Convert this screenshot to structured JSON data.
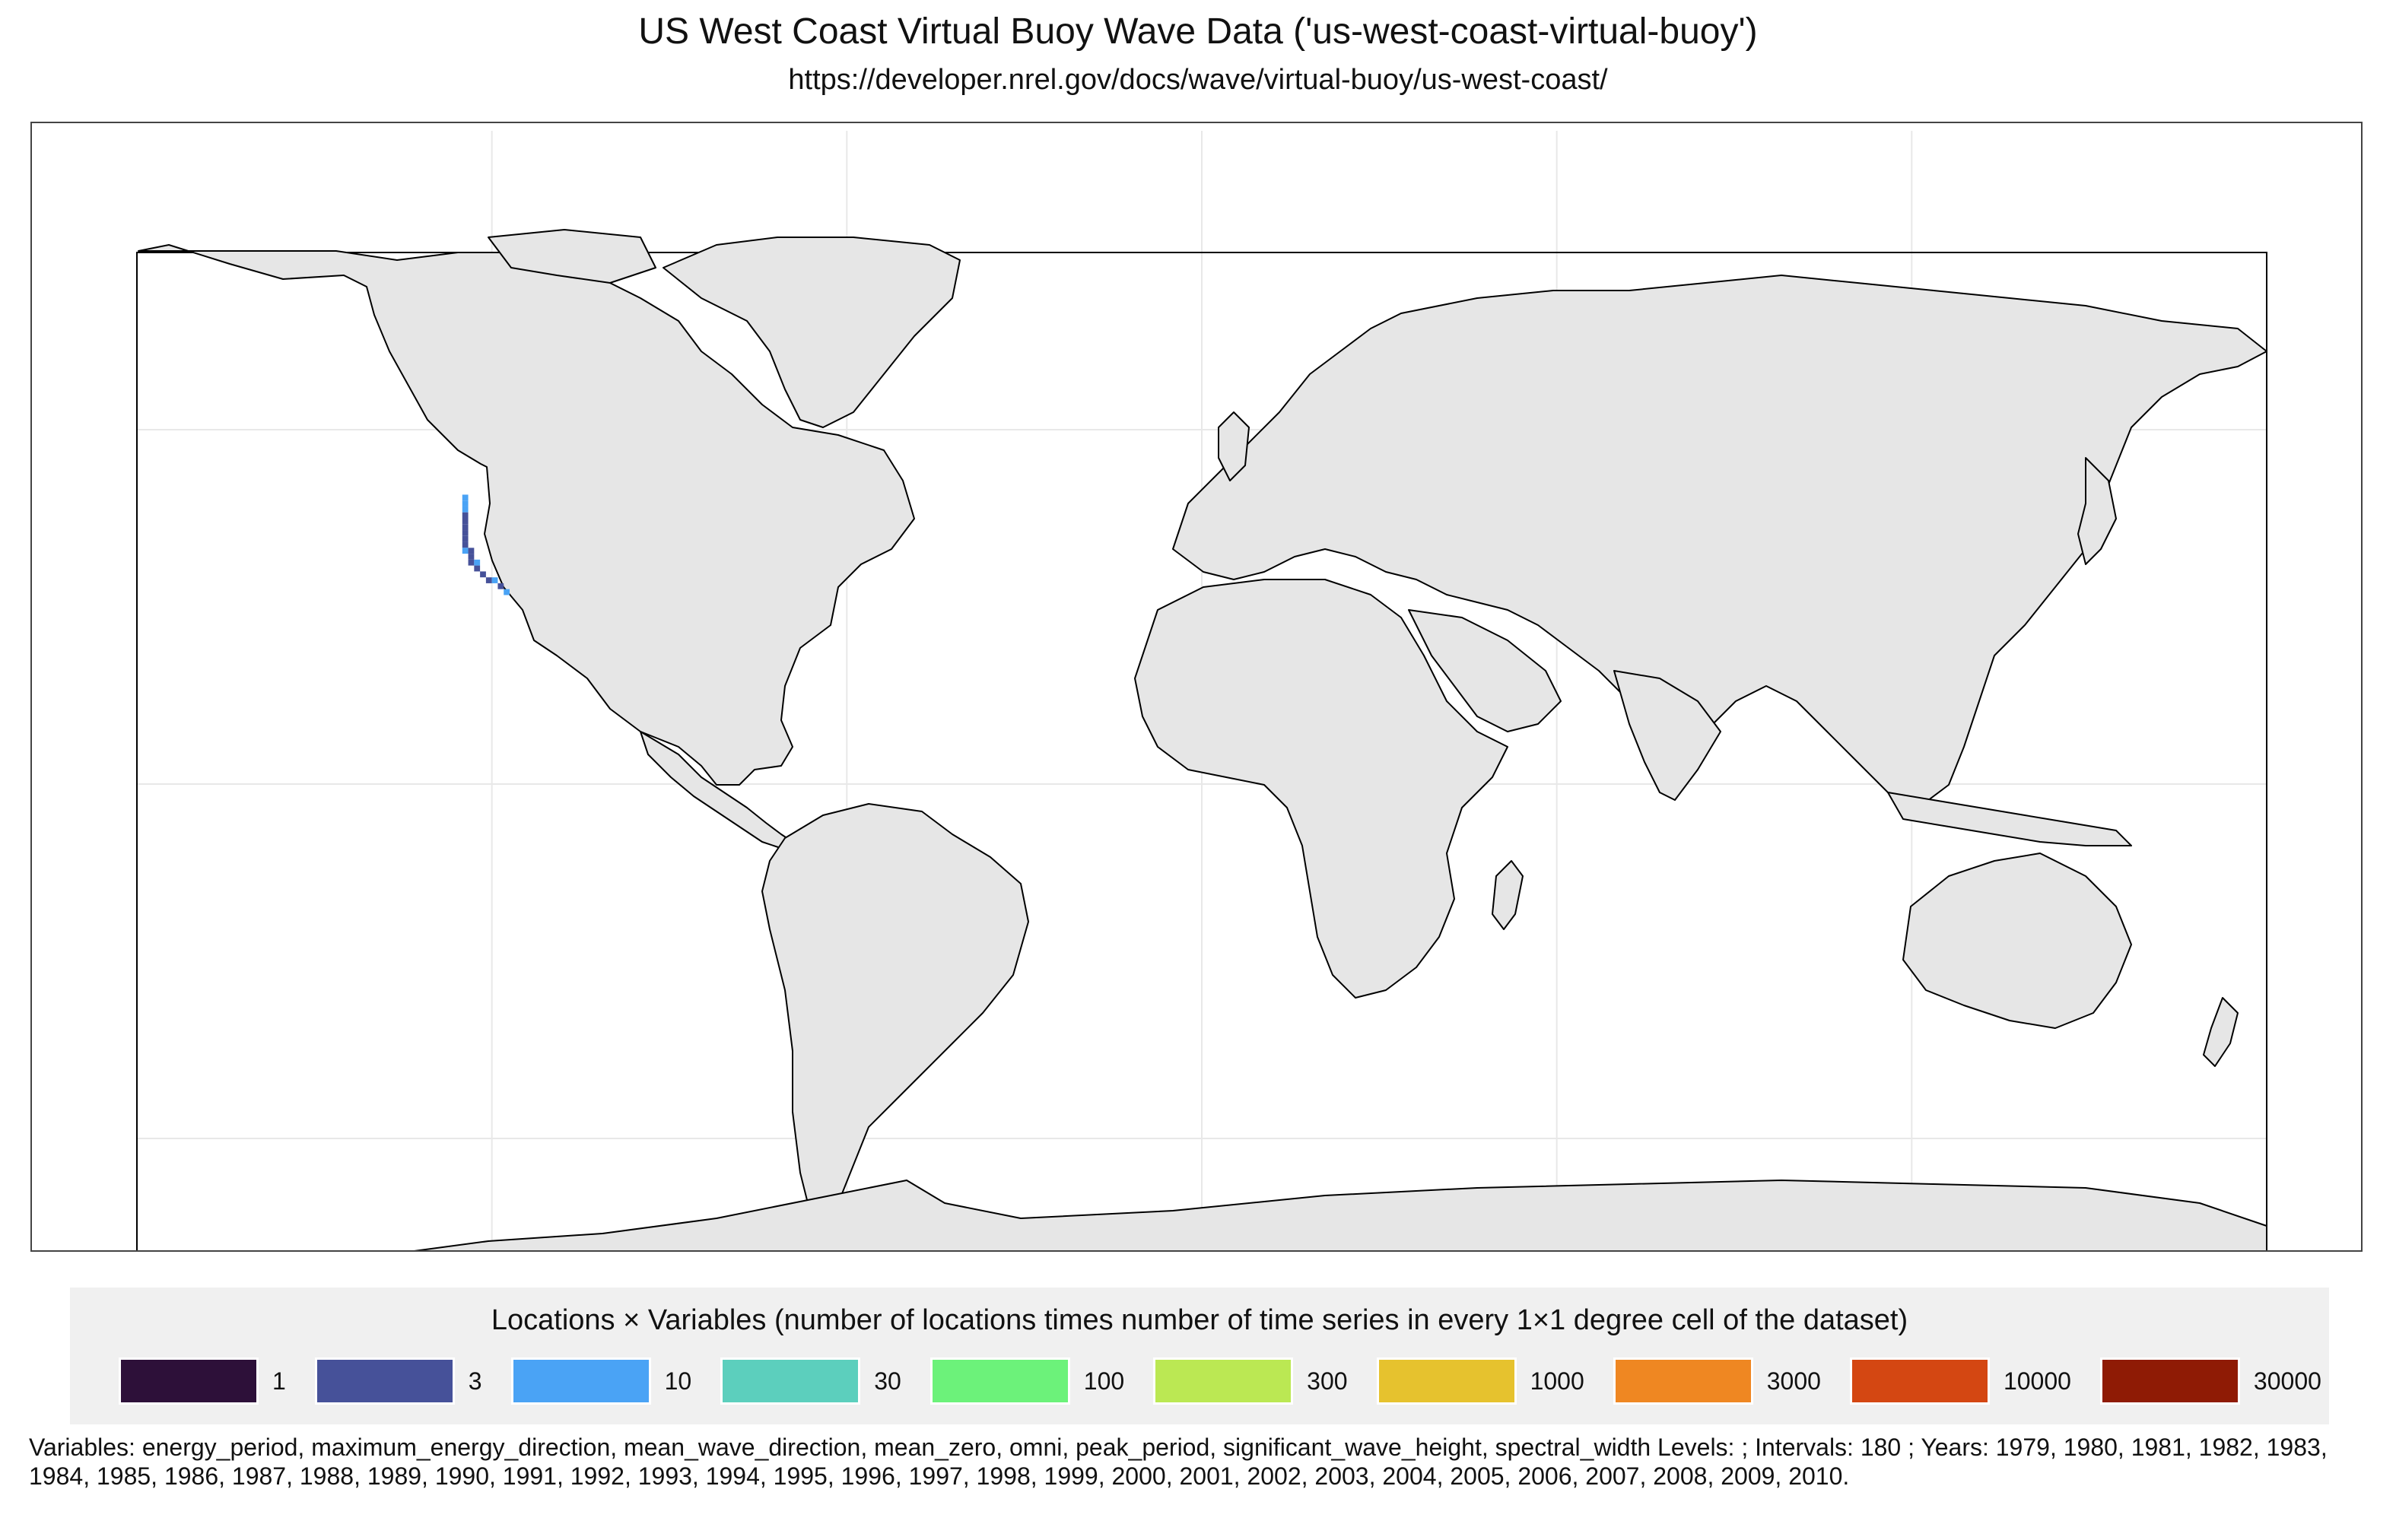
{
  "title": "US West Coast Virtual Buoy Wave Data ('us-west-coast-virtual-buoy')",
  "subtitle": "https://developer.nrel.gov/docs/wave/virtual-buoy/us-west-coast/",
  "colors": {
    "background": "#ffffff",
    "land_fill": "#e6e6e6",
    "land_cells": "#d9d9d9",
    "coastline": "#000000",
    "gridline": "#e8e8e8",
    "legend_panel": "#f0f0f0"
  },
  "legend": {
    "title": "Locations × Variables (number of locations times number of time series in every 1×1 degree cell of the dataset)",
    "items": [
      {
        "label": "1",
        "color": "#2d1039"
      },
      {
        "label": "3",
        "color": "#465199"
      },
      {
        "label": "10",
        "color": "#4aa3f5"
      },
      {
        "label": "30",
        "color": "#5ccfbd"
      },
      {
        "label": "100",
        "color": "#6cf27a"
      },
      {
        "label": "300",
        "color": "#bbe853"
      },
      {
        "label": "1000",
        "color": "#e6c22e"
      },
      {
        "label": "3000",
        "color": "#ef8722"
      },
      {
        "label": "10000",
        "color": "#d44712"
      },
      {
        "label": "30000",
        "color": "#8f1b05"
      }
    ]
  },
  "caption": "Variables: energy_period, maximum_energy_direction, mean_wave_direction, mean_zero, omni, peak_period, significant_wave_height, spectral_width Levels: ; Intervals: 180 ; Years: 1979, 1980, 1981, 1982, 1983, 1984, 1985, 1986, 1987, 1988, 1989, 1990, 1991, 1992, 1993, 1994, 1995, 1996, 1997, 1998, 1999, 2000, 2001, 2002, 2003, 2004, 2005, 2006, 2007, 2008, 2009, 2010.",
  "map": {
    "projection": "equirectangular",
    "lon_range": [
      -180,
      180
    ],
    "lat_range": [
      -90,
      90
    ],
    "data_cells": {
      "region": "US West Coast (California to Washington)",
      "cells": [
        {
          "lon": -124.5,
          "lat": 48.5,
          "level": 2
        },
        {
          "lon": -124.5,
          "lat": 47.5,
          "level": 2
        },
        {
          "lon": -124.5,
          "lat": 46.5,
          "level": 2
        },
        {
          "lon": -124.5,
          "lat": 45.5,
          "level": 1
        },
        {
          "lon": -124.5,
          "lat": 44.5,
          "level": 1
        },
        {
          "lon": -124.5,
          "lat": 43.5,
          "level": 1
        },
        {
          "lon": -124.5,
          "lat": 42.5,
          "level": 1
        },
        {
          "lon": -124.5,
          "lat": 41.5,
          "level": 1
        },
        {
          "lon": -124.5,
          "lat": 40.5,
          "level": 1
        },
        {
          "lon": -124.5,
          "lat": 39.5,
          "level": 2
        },
        {
          "lon": -123.5,
          "lat": 39.5,
          "level": 1
        },
        {
          "lon": -123.5,
          "lat": 38.5,
          "level": 1
        },
        {
          "lon": -123.5,
          "lat": 37.5,
          "level": 1
        },
        {
          "lon": -122.5,
          "lat": 37.5,
          "level": 2
        },
        {
          "lon": -122.5,
          "lat": 36.5,
          "level": 1
        },
        {
          "lon": -121.5,
          "lat": 35.5,
          "level": 1
        },
        {
          "lon": -120.5,
          "lat": 34.5,
          "level": 1
        },
        {
          "lon": -119.5,
          "lat": 34.5,
          "level": 2
        },
        {
          "lon": -118.5,
          "lat": 33.5,
          "level": 1
        },
        {
          "lon": -117.5,
          "lat": 32.5,
          "level": 2
        }
      ]
    }
  }
}
